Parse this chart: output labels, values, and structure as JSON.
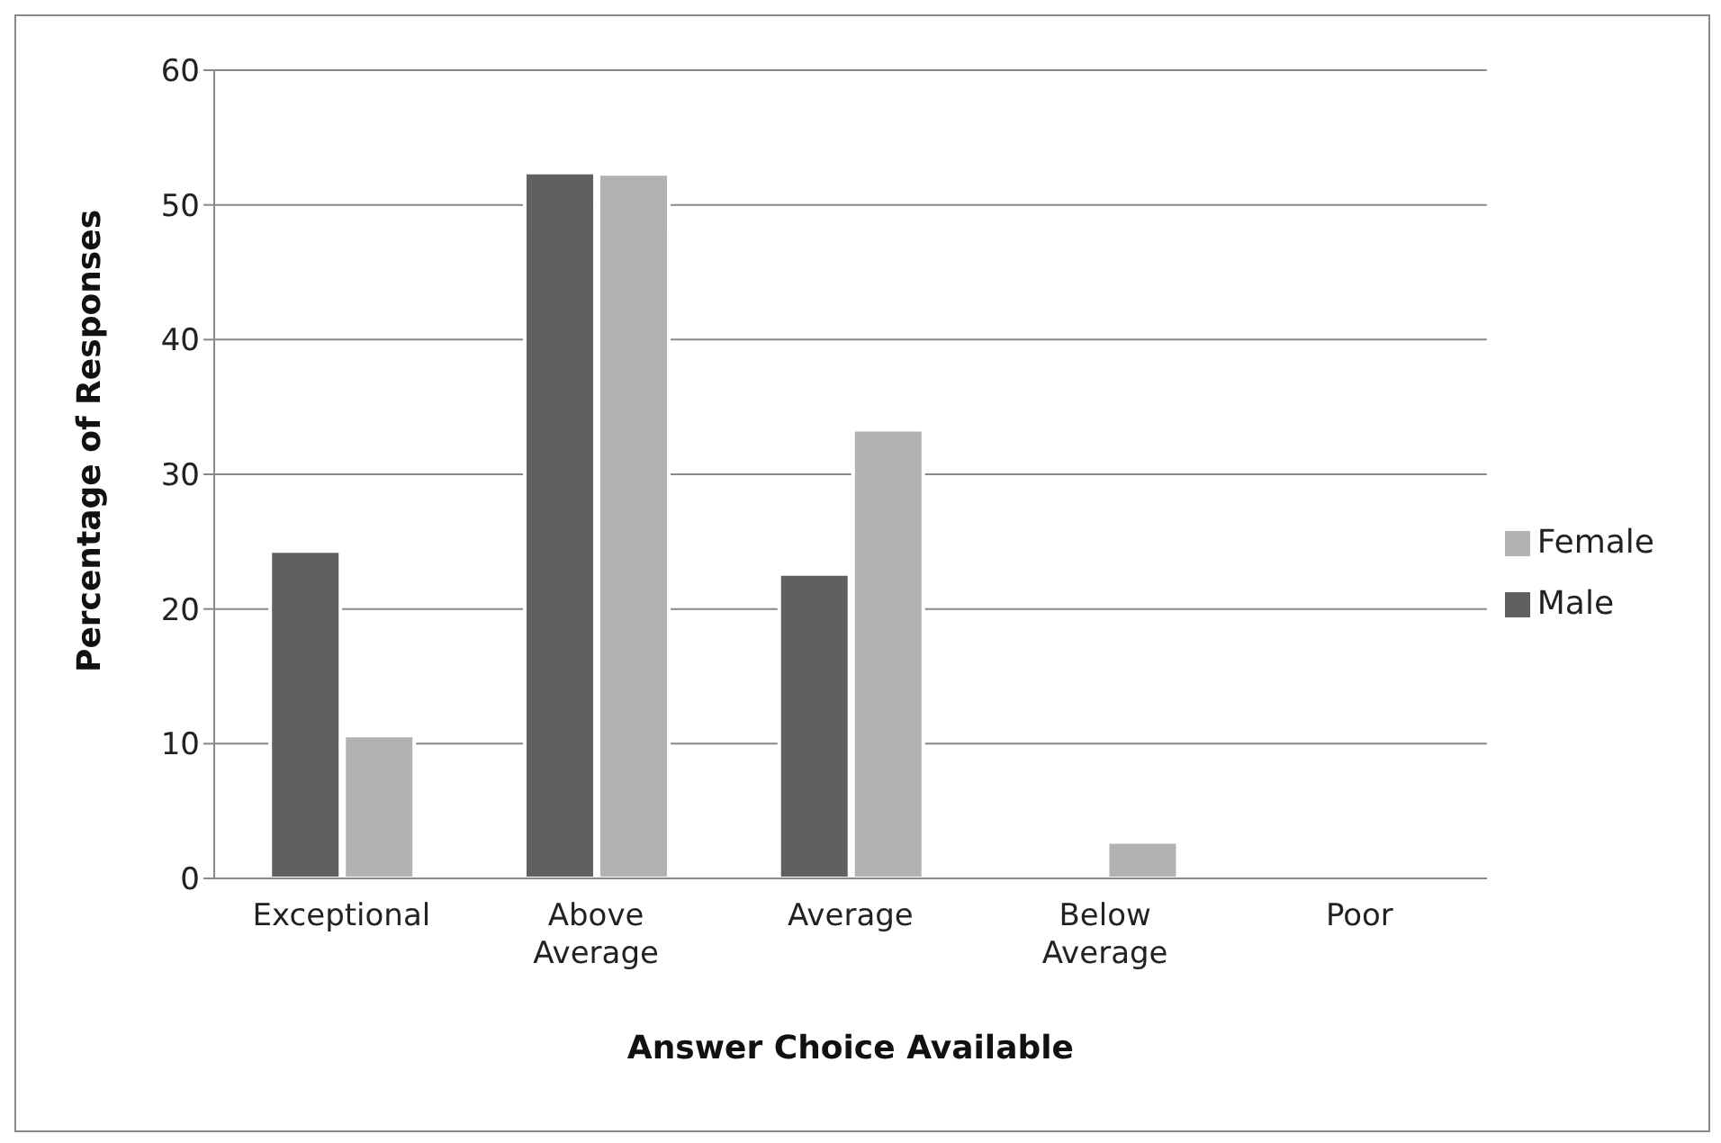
{
  "chart_data": {
    "type": "bar",
    "xlabel": "Answer Choice Available",
    "ylabel": "Percentage of Responses",
    "categories": [
      "Exceptional",
      "Above Average",
      "Average",
      "Below Average",
      "Poor"
    ],
    "series": [
      {
        "name": "Male",
        "color": "#606060",
        "values": [
          24.3,
          52.4,
          22.6,
          0,
          0
        ]
      },
      {
        "name": "Female",
        "color": "#b2b2b2",
        "values": [
          10.6,
          52.3,
          33.3,
          2.7,
          0
        ]
      }
    ],
    "ylim": [
      0,
      60
    ],
    "yticks": [
      0,
      10,
      20,
      30,
      40,
      50,
      60
    ],
    "grid": "y",
    "legend": "right"
  }
}
